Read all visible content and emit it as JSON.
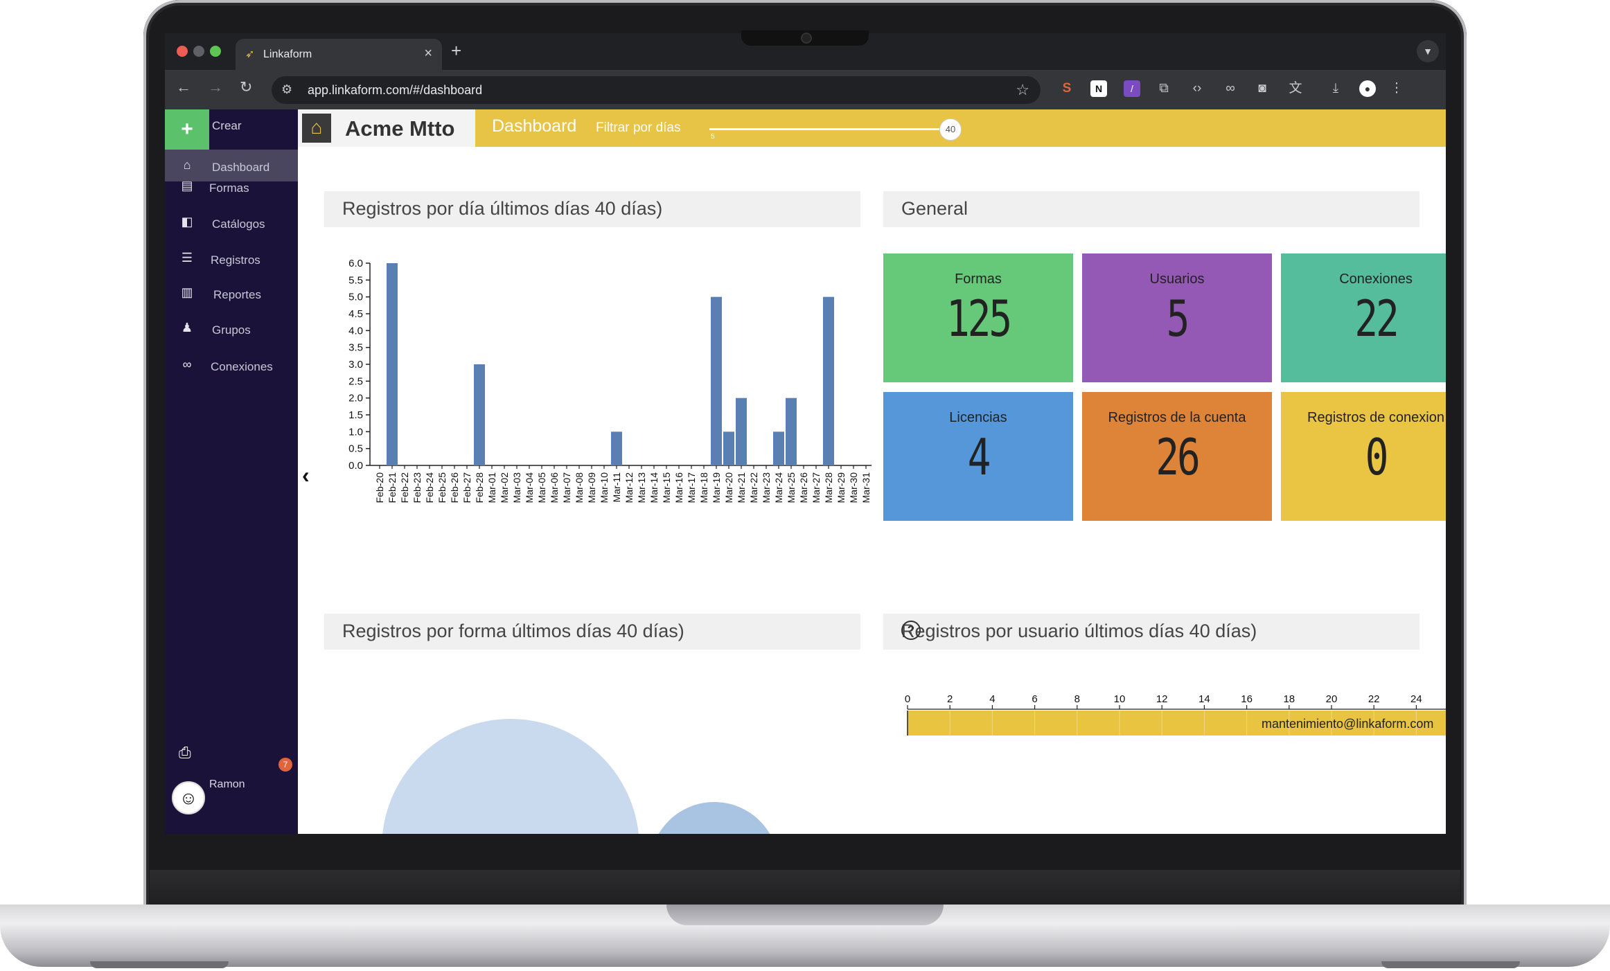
{
  "browser": {
    "tab_title": "Linkaform",
    "url": "app.linkaform.com/#/dashboard",
    "new_tab": "+",
    "close": "×"
  },
  "sidebar": {
    "create_label": "Crear",
    "items": [
      {
        "label": "Dashboard",
        "icon": "home-icon",
        "active": true
      },
      {
        "label": "Formas",
        "icon": "file-icon"
      },
      {
        "label": "Catálogos",
        "icon": "book-icon"
      },
      {
        "label": "Registros",
        "icon": "list-icon"
      },
      {
        "label": "Reportes",
        "icon": "bar-chart-icon"
      },
      {
        "label": "Grupos",
        "icon": "users-icon"
      },
      {
        "label": "Conexiones",
        "icon": "link-icon"
      }
    ],
    "notifications_count": "7",
    "user_name": "Ramon"
  },
  "topbar": {
    "brand": "Acme Mtto",
    "title": "Dashboard",
    "filter_label": "Filtrar por días",
    "slider_min": "5",
    "slider_value": "40"
  },
  "panels": {
    "by_day_title": "Registros por día últimos días 40 días)",
    "general_title": "General",
    "by_form_title": "Registros por forma últimos días 40 días)",
    "by_user_title": "Registros por usuario últimos días 40 días)"
  },
  "cards": [
    {
      "label": "Formas",
      "value": "125",
      "color": "#66c97a"
    },
    {
      "label": "Usuarios",
      "value": "5",
      "color": "#9459b5"
    },
    {
      "label": "Conexiones",
      "value": "22",
      "color": "#55bc9c"
    },
    {
      "label": "Licencias",
      "value": "4",
      "color": "#5597d8"
    },
    {
      "label": "Registros de la cuenta",
      "value": "26",
      "color": "#de8438"
    },
    {
      "label": "Registros de conexion",
      "value": "0",
      "color": "#eac544"
    }
  ],
  "chart_data": [
    {
      "type": "bar",
      "title": "Registros por día últimos días 40 días)",
      "categories": [
        "Feb-20",
        "Feb-21",
        "Feb-22",
        "Feb-23",
        "Feb-24",
        "Feb-25",
        "Feb-26",
        "Feb-27",
        "Feb-28",
        "Mar-01",
        "Mar-02",
        "Mar-03",
        "Mar-04",
        "Mar-05",
        "Mar-06",
        "Mar-07",
        "Mar-08",
        "Mar-09",
        "Mar-10",
        "Mar-11",
        "Mar-12",
        "Mar-13",
        "Mar-14",
        "Mar-15",
        "Mar-16",
        "Mar-17",
        "Mar-18",
        "Mar-19",
        "Mar-20",
        "Mar-21",
        "Mar-22",
        "Mar-23",
        "Mar-24",
        "Mar-25",
        "Mar-26",
        "Mar-27",
        "Mar-28",
        "Mar-29",
        "Mar-30",
        "Mar-31"
      ],
      "values": [
        0,
        6,
        0,
        0,
        0,
        0,
        0,
        0,
        3,
        0,
        0,
        0,
        0,
        0,
        0,
        0,
        0,
        0,
        0,
        1,
        0,
        0,
        0,
        0,
        0,
        0,
        0,
        5,
        1,
        2,
        0,
        0,
        1,
        2,
        0,
        0,
        5,
        0,
        0,
        0
      ],
      "yticks": [
        "0.0",
        "0.5",
        "1.0",
        "1.5",
        "2.0",
        "2.5",
        "3.0",
        "3.5",
        "4.0",
        "4.5",
        "5.0",
        "5.5",
        "6.0"
      ],
      "ylim": [
        0,
        6
      ],
      "color": "#5a80b3"
    },
    {
      "type": "bar",
      "title": "Registros por usuario últimos días 40 días)",
      "orientation": "horizontal",
      "categories": [
        "mantenimiento@linkaform.com"
      ],
      "values": [
        26
      ],
      "xticks": [
        "0",
        "2",
        "4",
        "6",
        "8",
        "10",
        "12",
        "14",
        "16",
        "18",
        "20",
        "22",
        "24"
      ],
      "color": "#e9c440"
    }
  ]
}
